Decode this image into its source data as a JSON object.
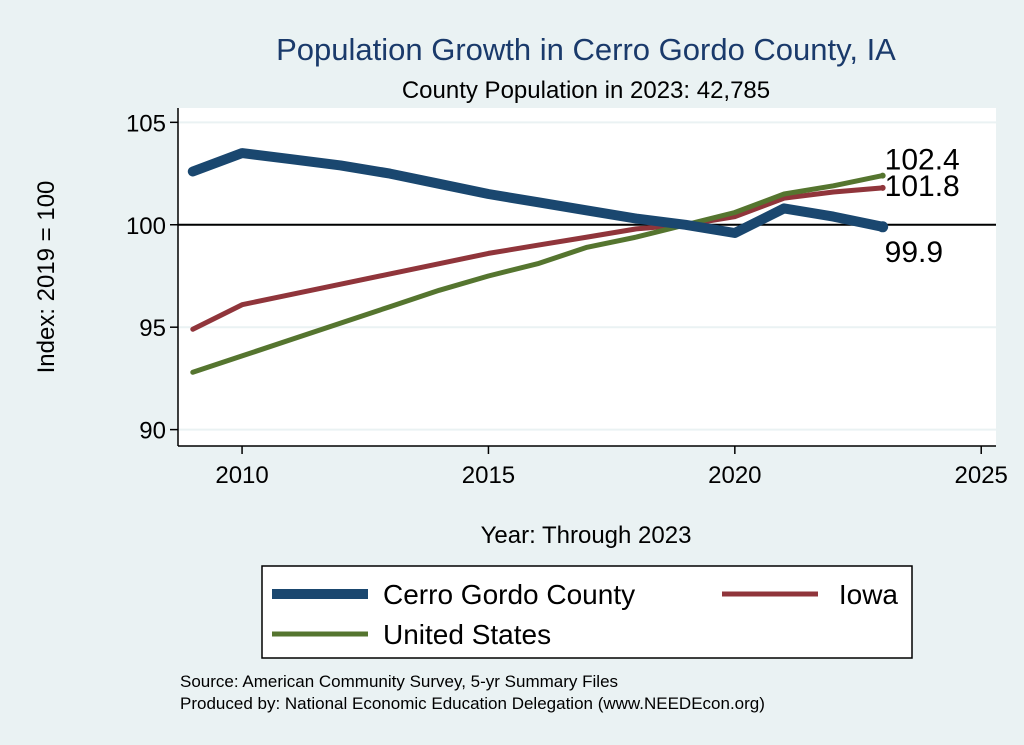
{
  "chart_data": {
    "type": "line",
    "title": "Population Growth in Cerro Gordo County, IA",
    "subtitle": "County Population in 2023: 42,785",
    "xlabel": "Year: Through 2023",
    "ylabel": "Index: 2019 = 100",
    "xlim": [
      2008.7,
      2025.3
    ],
    "ylim": [
      89.2,
      105.7
    ],
    "xticks": [
      2010,
      2015,
      2020,
      2025
    ],
    "yticks": [
      90,
      95,
      100,
      105
    ],
    "reference_line": 100,
    "grid": true,
    "legend_position": "bottom",
    "series": [
      {
        "name": "Cerro Gordo  County",
        "color": "#1a476f",
        "x": [
          2009,
          2010,
          2011,
          2012,
          2013,
          2014,
          2015,
          2016,
          2017,
          2018,
          2019,
          2020,
          2021,
          2022,
          2023
        ],
        "values": [
          102.6,
          103.5,
          103.2,
          102.9,
          102.5,
          102.0,
          101.5,
          101.1,
          100.7,
          100.3,
          100.0,
          99.6,
          100.8,
          100.4,
          99.9
        ],
        "end_label": "99.9"
      },
      {
        "name": "Iowa",
        "color": "#90353b",
        "x": [
          2009,
          2010,
          2011,
          2012,
          2013,
          2014,
          2015,
          2016,
          2017,
          2018,
          2019,
          2020,
          2021,
          2022,
          2023
        ],
        "values": [
          94.9,
          96.1,
          96.6,
          97.1,
          97.6,
          98.1,
          98.6,
          99.0,
          99.4,
          99.8,
          100.0,
          100.4,
          101.3,
          101.6,
          101.8
        ],
        "end_label": "101.8"
      },
      {
        "name": "United States",
        "color": "#55752f",
        "x": [
          2009,
          2010,
          2011,
          2012,
          2013,
          2014,
          2015,
          2016,
          2017,
          2018,
          2019,
          2020,
          2021,
          2022,
          2023
        ],
        "values": [
          92.8,
          93.6,
          94.4,
          95.2,
          96.0,
          96.8,
          97.5,
          98.1,
          98.9,
          99.4,
          100.0,
          100.6,
          101.5,
          101.9,
          102.4
        ],
        "end_label": "102.4"
      }
    ]
  },
  "notes": {
    "source": "Source: American Community Survey, 5-yr Summary Files",
    "producer": "Produced by: National Economic Education Delegation (www.NEEDEcon.org)"
  }
}
